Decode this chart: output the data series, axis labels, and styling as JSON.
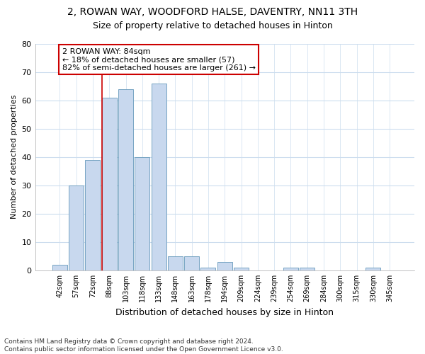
{
  "title": "2, ROWAN WAY, WOODFORD HALSE, DAVENTRY, NN11 3TH",
  "subtitle": "Size of property relative to detached houses in Hinton",
  "xlabel": "Distribution of detached houses by size in Hinton",
  "ylabel": "Number of detached properties",
  "bar_color": "#c8d8ee",
  "bar_edge_color": "#6699bb",
  "grid_color": "#ccddee",
  "categories": [
    "42sqm",
    "57sqm",
    "72sqm",
    "88sqm",
    "103sqm",
    "118sqm",
    "133sqm",
    "148sqm",
    "163sqm",
    "178sqm",
    "194sqm",
    "209sqm",
    "224sqm",
    "239sqm",
    "254sqm",
    "269sqm",
    "284sqm",
    "300sqm",
    "315sqm",
    "330sqm",
    "345sqm"
  ],
  "values": [
    2,
    30,
    39,
    61,
    64,
    40,
    66,
    5,
    5,
    1,
    3,
    1,
    0,
    0,
    1,
    1,
    0,
    0,
    0,
    1,
    0
  ],
  "vline_color": "#cc0000",
  "annotation_text": "2 ROWAN WAY: 84sqm\n← 18% of detached houses are smaller (57)\n82% of semi-detached houses are larger (261) →",
  "annotation_box_color": "#ffffff",
  "annotation_box_edge_color": "#cc0000",
  "ylim": [
    0,
    80
  ],
  "yticks": [
    0,
    10,
    20,
    30,
    40,
    50,
    60,
    70,
    80
  ],
  "footnote": "Contains HM Land Registry data © Crown copyright and database right 2024.\nContains public sector information licensed under the Open Government Licence v3.0.",
  "background_color": "#ffffff",
  "plot_bg_color": "#ffffff"
}
